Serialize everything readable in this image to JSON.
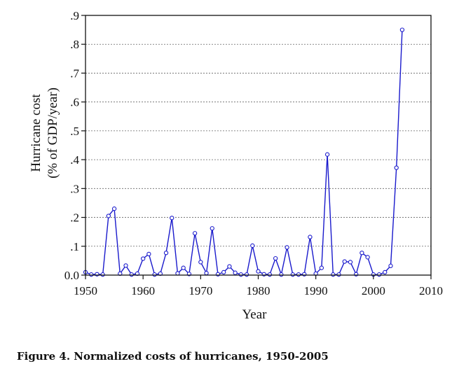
{
  "caption": "Figure 4. Normalized costs of hurricanes, 1950-2005",
  "chart_data": {
    "type": "line",
    "xlabel": "Year",
    "ylabel_lines": [
      "Hurricane cost",
      "(% of GDP/year)"
    ],
    "xlim": [
      1950,
      2010
    ],
    "ylim": [
      0,
      0.9
    ],
    "x_ticks": [
      1950,
      1960,
      1970,
      1980,
      1990,
      2000,
      2010
    ],
    "x_tick_labels": [
      "1950",
      "1960",
      "1970",
      "1980",
      "1990",
      "2000",
      "2010"
    ],
    "y_ticks": [
      0,
      0.1,
      0.2,
      0.3,
      0.4,
      0.5,
      0.6,
      0.7,
      0.8,
      0.9
    ],
    "y_tick_labels": [
      "0.0",
      ".1",
      ".2",
      ".3",
      ".4",
      ".5",
      ".6",
      ".7",
      ".8",
      ".9"
    ],
    "grid": "horizontal dashed",
    "line_color": "#1a1acc",
    "series": [
      {
        "x": [
          1950,
          1951,
          1952,
          1953,
          1954,
          1955,
          1956,
          1957,
          1958,
          1959,
          1960,
          1961,
          1962,
          1963,
          1964,
          1965,
          1966,
          1967,
          1968,
          1969,
          1970,
          1971,
          1972,
          1973,
          1974,
          1975,
          1976,
          1977,
          1978,
          1979,
          1980,
          1981,
          1982,
          1983,
          1984,
          1985,
          1986,
          1987,
          1988,
          1989,
          1990,
          1991,
          1992,
          1993,
          1994,
          1995,
          1996,
          1997,
          1998,
          1999,
          2000,
          2001,
          2002,
          2003,
          2004,
          2005
        ],
        "y": [
          0.01,
          0.002,
          0.003,
          0.002,
          0.205,
          0.23,
          0.005,
          0.033,
          0.002,
          0.005,
          0.057,
          0.073,
          0.002,
          0.005,
          0.077,
          0.198,
          0.006,
          0.025,
          0.004,
          0.145,
          0.045,
          0.007,
          0.162,
          0.003,
          0.01,
          0.03,
          0.008,
          0.002,
          0.002,
          0.102,
          0.013,
          0.003,
          0.002,
          0.058,
          0.002,
          0.096,
          0.002,
          0.002,
          0.003,
          0.132,
          0.005,
          0.025,
          0.418,
          0.002,
          0.002,
          0.047,
          0.045,
          0.003,
          0.077,
          0.062,
          0.002,
          0.002,
          0.01,
          0.032,
          0.372,
          0.85
        ]
      }
    ]
  }
}
